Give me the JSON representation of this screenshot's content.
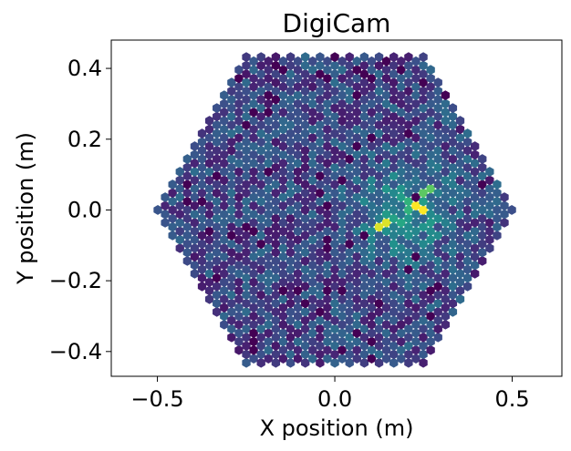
{
  "chart_data": {
    "type": "heatmap",
    "title": "DigiCam",
    "xlabel": "X position (m)",
    "ylabel": "Y position (m)",
    "xlim": [
      -0.63,
      0.64
    ],
    "ylim": [
      -0.47,
      0.48
    ],
    "xticks": [
      -0.5,
      0.0,
      0.5
    ],
    "xtick_labels": [
      "−0.5",
      "0.0",
      "0.5"
    ],
    "yticks": [
      -0.4,
      -0.2,
      0.0,
      0.2,
      0.4
    ],
    "ytick_labels": [
      "−0.4",
      "−0.2",
      "0.0",
      "0.2",
      "0.4"
    ],
    "grid": false,
    "colormap": "viridis",
    "camera": {
      "shape": "hexagonal",
      "circumradius_m": 0.5,
      "pixel_pitch_m": 0.024,
      "pixel_count": 1296
    },
    "hotspots": [
      {
        "x": 0.24,
        "y": 0.01,
        "value": 1.0
      },
      {
        "x": 0.135,
        "y": -0.045,
        "value": 0.95
      },
      {
        "x": 0.26,
        "y": 0.05,
        "value": 0.75
      },
      {
        "x": 0.21,
        "y": 0.015,
        "value": 0.65
      },
      {
        "x": 0.19,
        "y": -0.03,
        "value": 0.6
      }
    ],
    "colors": {
      "low": "#440154",
      "high": "#fde725",
      "background": "#ffffff"
    }
  }
}
